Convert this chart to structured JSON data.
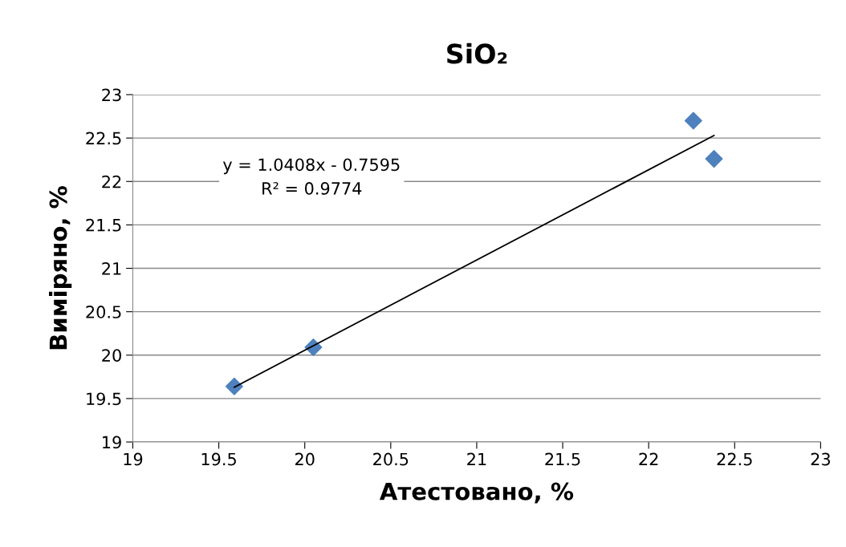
{
  "chart_data": {
    "type": "scatter",
    "title": "SiO₂",
    "xlabel": "Атестовано, %",
    "ylabel": "Виміряно, %",
    "x": [
      19.59,
      20.05,
      22.26,
      22.38
    ],
    "series": [
      {
        "color": "#4f81bd",
        "marker": "diamond",
        "values": [
          19.64,
          20.09,
          22.7,
          22.26
        ]
      },
      {
        "type": "line",
        "color": "#000000",
        "marker": "none",
        "line_style": "solid",
        "x": [
          19.59,
          22.38
        ],
        "values": [
          19.63,
          22.53
        ]
      }
    ],
    "annotations": [
      "y = 1.0408x - 0.7595\nR² = 0.9774"
    ],
    "xlim": [
      19,
      23
    ],
    "xticks": [
      19,
      19.5,
      20,
      20.5,
      21,
      21.5,
      22,
      22.5,
      23
    ],
    "ylim": [
      19,
      23
    ],
    "yticks": [
      19,
      19.5,
      20,
      20.5,
      21,
      21.5,
      22,
      22.5,
      23
    ],
    "grid": "y",
    "legend": false
  }
}
